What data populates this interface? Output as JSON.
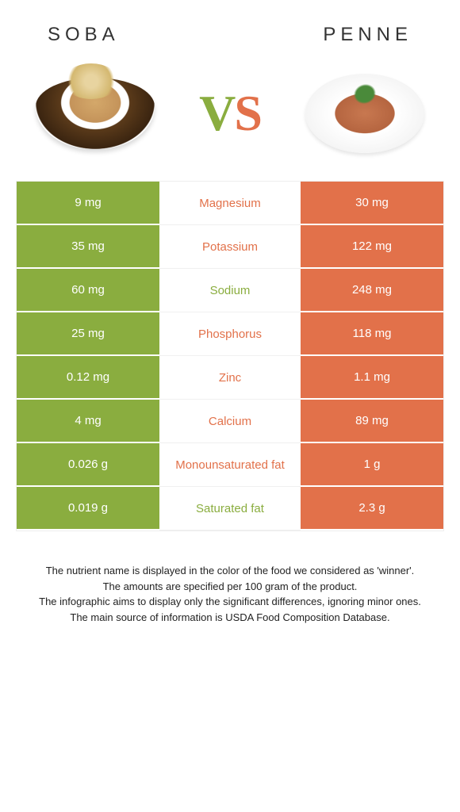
{
  "header": {
    "left_title": "SOBA",
    "right_title": "PENNE"
  },
  "vs": {
    "v": "V",
    "s": "S"
  },
  "colors": {
    "green": "#8aad3f",
    "orange": "#e2714a"
  },
  "rows": [
    {
      "nutrient": "Magnesium",
      "left": "9 mg",
      "right": "30 mg",
      "winner": "orange"
    },
    {
      "nutrient": "Potassium",
      "left": "35 mg",
      "right": "122 mg",
      "winner": "orange"
    },
    {
      "nutrient": "Sodium",
      "left": "60 mg",
      "right": "248 mg",
      "winner": "green"
    },
    {
      "nutrient": "Phosphorus",
      "left": "25 mg",
      "right": "118 mg",
      "winner": "orange"
    },
    {
      "nutrient": "Zinc",
      "left": "0.12 mg",
      "right": "1.1 mg",
      "winner": "orange"
    },
    {
      "nutrient": "Calcium",
      "left": "4 mg",
      "right": "89 mg",
      "winner": "orange"
    },
    {
      "nutrient": "Monounsaturated fat",
      "left": "0.026 g",
      "right": "1 g",
      "winner": "orange"
    },
    {
      "nutrient": "Saturated fat",
      "left": "0.019 g",
      "right": "2.3 g",
      "winner": "green"
    }
  ],
  "footer": {
    "line1": "The nutrient name is displayed in the color of the food we considered as 'winner'.",
    "line2": "The amounts are specified per 100 gram of the product.",
    "line3": "The infographic aims to display only the significant differences, ignoring minor ones.",
    "line4": "The main source of information is USDA Food Composition Database."
  }
}
